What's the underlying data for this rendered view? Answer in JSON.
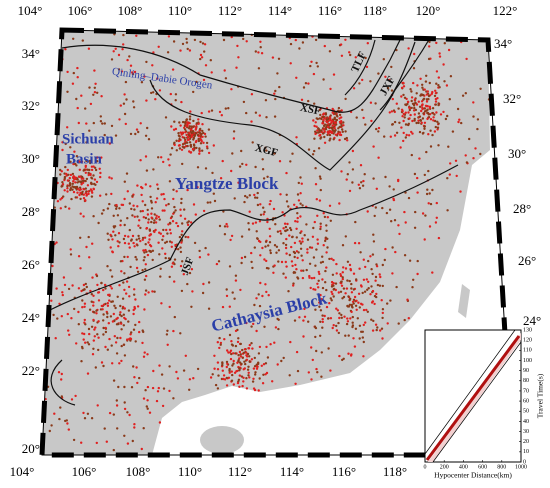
{
  "map": {
    "top_labels": [
      "104°",
      "106°",
      "108°",
      "110°",
      "112°",
      "114°",
      "116°",
      "118°",
      "120°",
      "122°"
    ],
    "bottom_labels": [
      "104°",
      "106°",
      "108°",
      "110°",
      "112°",
      "114°",
      "116°",
      "118°"
    ],
    "left_labels": [
      "34°",
      "32°",
      "30°",
      "28°",
      "26°",
      "24°",
      "22°",
      "20°"
    ],
    "right_labels": [
      "34°",
      "32°",
      "30°",
      "28°",
      "26°",
      "24°"
    ],
    "regions": {
      "orogen": "Qinling–Dabie Orogen",
      "basin_1": "Sichuan",
      "basin_2": "Basin",
      "yangtze": "Yangtze Block",
      "cathaysia": "Cathaysia Block"
    },
    "faults": {
      "xsf": "XSF",
      "xgf": "XGF",
      "tlf": "TLF",
      "jxf": "JXF",
      "jsf": "JSF"
    }
  },
  "inset": {
    "xlabel": "Hypocenter Distance(km)",
    "ylabel": "Travel Time(s)",
    "xlim": [
      0,
      1000
    ],
    "xticks": [
      0,
      200,
      400,
      600,
      800,
      1000
    ],
    "ylim": [
      0,
      130
    ],
    "yticks": [
      0,
      10,
      20,
      30,
      40,
      50,
      60,
      70,
      80,
      90,
      100,
      110,
      120,
      130
    ]
  }
}
